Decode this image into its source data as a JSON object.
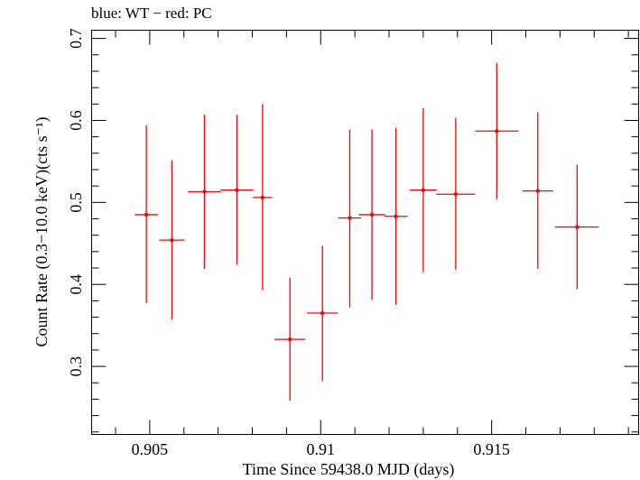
{
  "chart_data": {
    "type": "scatter",
    "title": "blue: WT − red: PC",
    "xlabel": "Time Since 59438.0 MJD (days)",
    "ylabel": "Count Rate (0.3−10.0 keV)(cts s⁻¹)",
    "xlim": [
      0.9033,
      0.9193
    ],
    "ylim": [
      0.217,
      0.71
    ],
    "xticks": [
      {
        "value": 0.905,
        "label": "0.905"
      },
      {
        "value": 0.91,
        "label": "0.91"
      },
      {
        "value": 0.915,
        "label": "0.915"
      }
    ],
    "yticks": [
      {
        "value": 0.3,
        "label": "0.3"
      },
      {
        "value": 0.4,
        "label": "0.4"
      },
      {
        "value": 0.5,
        "label": "0.5"
      },
      {
        "value": 0.6,
        "label": "0.6"
      },
      {
        "value": 0.7,
        "label": "0.7"
      }
    ],
    "grid": false,
    "series": [
      {
        "color": "#ff0000",
        "points": [
          {
            "x": 0.9049,
            "y": 0.485,
            "xerr": 0.00034,
            "ylo": 0.377,
            "yhi": 0.594
          },
          {
            "x": 0.90565,
            "y": 0.454,
            "xerr": 0.00037,
            "ylo": 0.357,
            "yhi": 0.551
          },
          {
            "x": 0.9066,
            "y": 0.513,
            "xerr": 0.00048,
            "ylo": 0.419,
            "yhi": 0.607
          },
          {
            "x": 0.90755,
            "y": 0.515,
            "xerr": 0.00048,
            "ylo": 0.424,
            "yhi": 0.607
          },
          {
            "x": 0.9083,
            "y": 0.506,
            "xerr": 0.00028,
            "ylo": 0.393,
            "yhi": 0.62
          },
          {
            "x": 0.9091,
            "y": 0.333,
            "xerr": 0.00045,
            "ylo": 0.258,
            "yhi": 0.408
          },
          {
            "x": 0.91005,
            "y": 0.365,
            "xerr": 0.00045,
            "ylo": 0.282,
            "yhi": 0.447
          },
          {
            "x": 0.91085,
            "y": 0.481,
            "xerr": 0.00034,
            "ylo": 0.372,
            "yhi": 0.589
          },
          {
            "x": 0.9115,
            "y": 0.485,
            "xerr": 0.00039,
            "ylo": 0.381,
            "yhi": 0.589
          },
          {
            "x": 0.9122,
            "y": 0.483,
            "xerr": 0.00034,
            "ylo": 0.375,
            "yhi": 0.591
          },
          {
            "x": 0.913,
            "y": 0.515,
            "xerr": 0.00039,
            "ylo": 0.415,
            "yhi": 0.615
          },
          {
            "x": 0.91395,
            "y": 0.51,
            "xerr": 0.00057,
            "ylo": 0.418,
            "yhi": 0.603
          },
          {
            "x": 0.91515,
            "y": 0.587,
            "xerr": 0.00063,
            "ylo": 0.504,
            "yhi": 0.67
          },
          {
            "x": 0.91635,
            "y": 0.514,
            "xerr": 0.00045,
            "ylo": 0.419,
            "yhi": 0.61
          },
          {
            "x": 0.9175,
            "y": 0.47,
            "xerr": 0.00064,
            "ylo": 0.394,
            "yhi": 0.546
          }
        ]
      }
    ]
  }
}
